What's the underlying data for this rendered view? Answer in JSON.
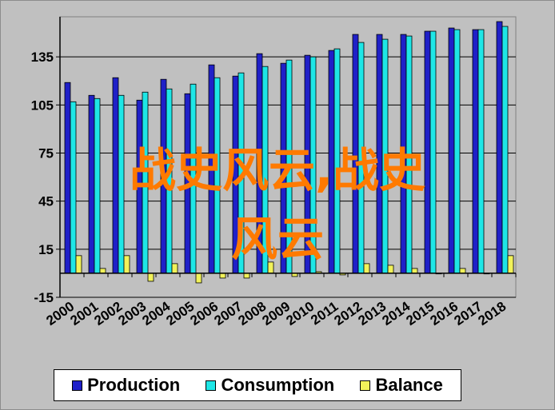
{
  "chart_data": {
    "type": "bar",
    "categories": [
      "2000",
      "2001",
      "2002",
      "2003",
      "2004",
      "2005",
      "2006",
      "2007",
      "2008",
      "2009",
      "2010",
      "2011",
      "2012",
      "2013",
      "2014",
      "2015",
      "2016",
      "2017",
      "2018"
    ],
    "series": [
      {
        "name": "Production",
        "color": "#1f20c8",
        "values": [
          119,
          111,
          122,
          108,
          121,
          112,
          130,
          123,
          137,
          131,
          136,
          139,
          149,
          149,
          149,
          151,
          153,
          152,
          157
        ]
      },
      {
        "name": "Consumption",
        "color": "#1ee6e6",
        "values": [
          107,
          109,
          111,
          113,
          115,
          118,
          122,
          125,
          129,
          133,
          135,
          140,
          144,
          146,
          148,
          151,
          152,
          152,
          154
        ]
      },
      {
        "name": "Balance",
        "color": "#f2f25a",
        "values": [
          11,
          3,
          11,
          -5,
          6,
          -6,
          -3,
          -3,
          7,
          -2,
          1,
          -1,
          6,
          5,
          3,
          0,
          3,
          0,
          11
        ]
      }
    ],
    "yticks": [
      "-15",
      "15",
      "45",
      "75",
      "105",
      "135"
    ],
    "ylim": [
      -15,
      160
    ],
    "grid": "horizontal",
    "legend_position": "bottom",
    "title": "",
    "xlabel": "",
    "ylabel": ""
  },
  "watermark": {
    "line1": "战史风云,战史",
    "line2": "风云"
  }
}
